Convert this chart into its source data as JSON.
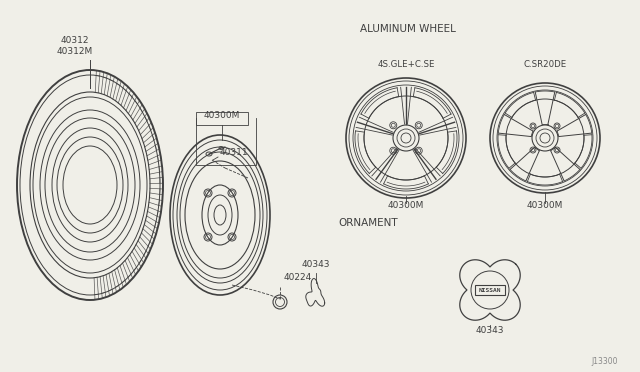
{
  "bg_color": "#f0efe8",
  "line_color": "#404040",
  "diagram_ref": "J13300",
  "labels": {
    "tire1": "40312",
    "tire2": "40312M",
    "wheel_label": "40300M",
    "valve": "40311",
    "lug_nut": "40224",
    "ornament_small": "40343",
    "ornament_large": "40343",
    "alum_wheel_title": "ALUMINUM WHEEL",
    "alum_wheel_left_label": "4S.GLE+C.SE",
    "alum_wheel_right_label": "C.SR20DE",
    "alum_wheel_left_part": "40300M",
    "alum_wheel_right_part": "40300M",
    "ornament_section": "ORNAMENT"
  }
}
